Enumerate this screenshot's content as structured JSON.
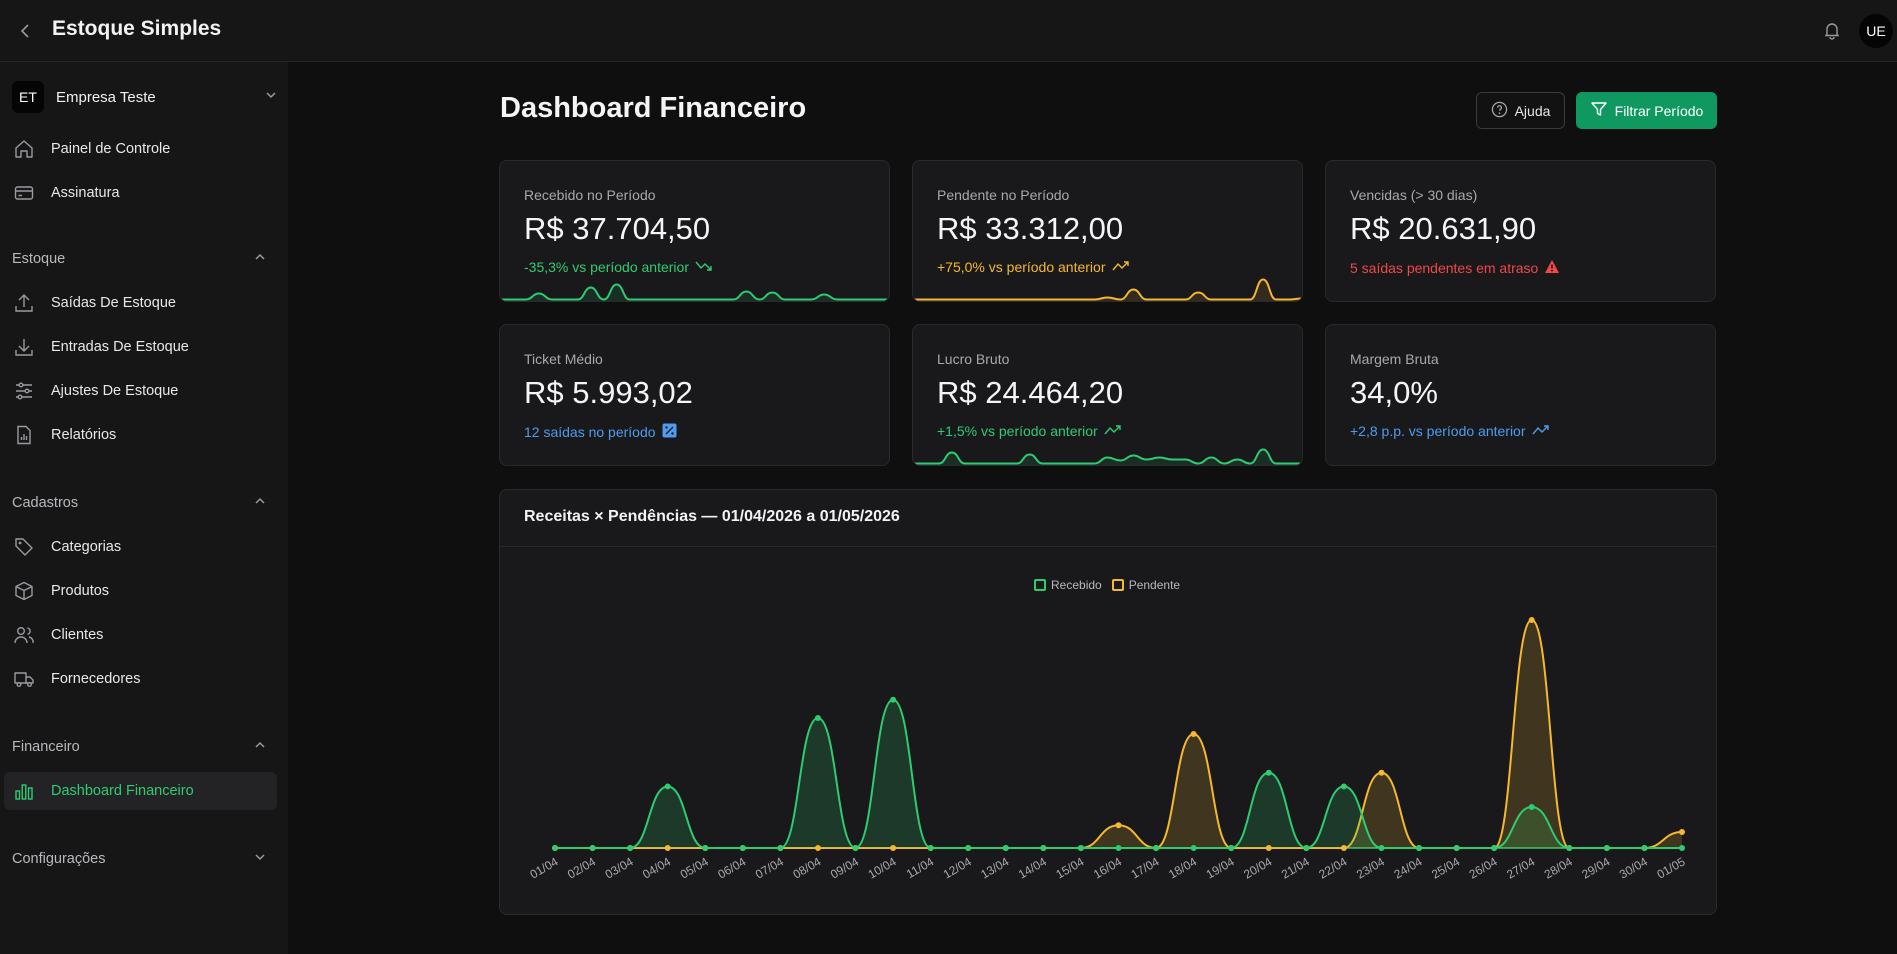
{
  "app": {
    "title": "Estoque Simples",
    "user_initials": "UE"
  },
  "sidebar": {
    "company": {
      "initials": "ET",
      "name": "Empresa Teste"
    },
    "top_items": [
      {
        "label": "Painel de Controle",
        "icon": "home-icon"
      },
      {
        "label": "Assinatura",
        "icon": "credit-card-icon"
      }
    ],
    "sections": [
      {
        "label": "Estoque",
        "items": [
          {
            "label": "Saídas De Estoque",
            "icon": "upload-icon"
          },
          {
            "label": "Entradas De Estoque",
            "icon": "download-icon"
          },
          {
            "label": "Ajustes De Estoque",
            "icon": "sliders-icon"
          },
          {
            "label": "Relatórios",
            "icon": "report-icon"
          }
        ]
      },
      {
        "label": "Cadastros",
        "items": [
          {
            "label": "Categorias",
            "icon": "tag-icon"
          },
          {
            "label": "Produtos",
            "icon": "box-icon"
          },
          {
            "label": "Clientes",
            "icon": "users-icon"
          },
          {
            "label": "Fornecedores",
            "icon": "truck-icon"
          }
        ]
      },
      {
        "label": "Financeiro",
        "items": [
          {
            "label": "Dashboard Financeiro",
            "icon": "bar-chart-icon",
            "active": true
          }
        ]
      },
      {
        "label": "Configurações",
        "items": []
      }
    ]
  },
  "header": {
    "title": "Dashboard Financeiro",
    "help_label": "Ajuda",
    "filter_label": "Filtrar Período"
  },
  "cards": [
    {
      "title": "Recebido no Período",
      "value": "R$ 37.704,50",
      "sub": "-35,3% vs período anterior",
      "color": "#2ecc71",
      "sub_color": "#2ecc71",
      "icon": "trend-down-icon",
      "spark": [
        0,
        0,
        0,
        0.3,
        0,
        0,
        0,
        0.6,
        0,
        0.75,
        0,
        0,
        0,
        0,
        0,
        0,
        0,
        0,
        0,
        0.4,
        0,
        0.35,
        0,
        0,
        0,
        0.25,
        0,
        0,
        0,
        0,
        0
      ]
    },
    {
      "title": "Pendente no Período",
      "value": "R$ 33.312,00",
      "sub": "+75,0% vs período anterior",
      "color": "#f5b82e",
      "sub_color": "#f5b82e",
      "icon": "trend-up-icon",
      "spark": [
        0,
        0,
        0,
        0,
        0,
        0,
        0,
        0,
        0,
        0,
        0,
        0,
        0,
        0,
        0,
        0.1,
        0,
        0.5,
        0,
        0,
        0,
        0,
        0.35,
        0,
        0,
        0,
        0,
        1,
        0,
        0,
        0.05
      ]
    },
    {
      "title": "Vencidas (> 30 dias)",
      "value": "R$ 20.631,90",
      "sub": "5 saídas pendentes em atraso",
      "color": "",
      "sub_color": "#f0474a",
      "icon": "alert-triangle-icon",
      "spark": []
    },
    {
      "title": "Ticket Médio",
      "value": "R$ 5.993,02",
      "sub": "12 saídas no período",
      "color": "",
      "sub_color": "#4d9cf0",
      "icon": "percent-icon",
      "spark": []
    },
    {
      "title": "Lucro Bruto",
      "value": "R$ 24.464,20",
      "sub": "+1,5% vs período anterior",
      "color": "#2ecc71",
      "sub_color": "#2ecc71",
      "icon": "trend-up-icon",
      "spark": [
        0,
        0,
        0,
        0.55,
        0,
        0,
        0,
        0,
        0,
        0.45,
        0,
        0,
        0,
        0,
        0,
        0.3,
        0.15,
        0.4,
        0.2,
        0.3,
        0.2,
        0.2,
        0,
        0.3,
        0,
        0.2,
        0,
        0.7,
        0,
        0,
        0
      ]
    },
    {
      "title": "Margem Bruta",
      "value": "34,0%",
      "sub": "+2,8 p.p. vs período anterior",
      "color": "",
      "sub_color": "#4d9cf0",
      "icon": "trend-up-icon",
      "spark": []
    }
  ],
  "chart_data": {
    "type": "area",
    "title": "Receitas × Pendências — 01/04/2026 a 01/05/2026",
    "categories": [
      "01/04",
      "02/04",
      "03/04",
      "04/04",
      "05/04",
      "06/04",
      "07/04",
      "08/04",
      "09/04",
      "10/04",
      "11/04",
      "12/04",
      "13/04",
      "14/04",
      "15/04",
      "16/04",
      "17/04",
      "18/04",
      "19/04",
      "20/04",
      "21/04",
      "22/04",
      "23/04",
      "24/04",
      "25/04",
      "26/04",
      "27/04",
      "28/04",
      "29/04",
      "30/04",
      "01/05"
    ],
    "series": [
      {
        "name": "Recebido",
        "color": "#2ecc71",
        "values": [
          0,
          0,
          0,
          0.27,
          0,
          0,
          0,
          0.57,
          0,
          0.65,
          0,
          0,
          0,
          0,
          0,
          0,
          0,
          0,
          0,
          0.33,
          0,
          0.27,
          0,
          0,
          0,
          0,
          0.18,
          0,
          0,
          0,
          0
        ]
      },
      {
        "name": "Pendente",
        "color": "#f5b82e",
        "values": [
          0,
          0,
          0,
          0,
          0,
          0,
          0,
          0,
          0,
          0,
          0,
          0,
          0,
          0,
          0,
          0.1,
          0,
          0.5,
          0,
          0,
          0,
          0,
          0.33,
          0,
          0,
          0,
          1,
          0,
          0,
          0,
          0.07
        ]
      }
    ],
    "ylim": [
      0,
      1
    ],
    "grid": false,
    "legend": "top-center"
  }
}
